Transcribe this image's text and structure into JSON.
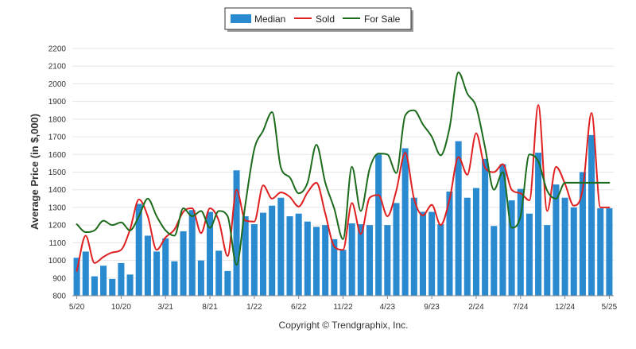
{
  "chart_data": {
    "type": "bar",
    "title": "",
    "xlabel": "",
    "ylabel": "Average Price (in $,000)",
    "ylim": [
      800,
      2200
    ],
    "yticks": [
      800,
      900,
      1000,
      1100,
      1200,
      1300,
      1400,
      1500,
      1600,
      1700,
      1800,
      1900,
      2000,
      2100,
      2200
    ],
    "grid": true,
    "legend_position": "top-center",
    "categories": [
      "5/20",
      "6/20",
      "7/20",
      "8/20",
      "9/20",
      "10/20",
      "11/20",
      "12/20",
      "1/21",
      "2/21",
      "3/21",
      "4/21",
      "5/21",
      "6/21",
      "7/21",
      "8/21",
      "9/21",
      "10/21",
      "11/21",
      "12/21",
      "1/22",
      "2/22",
      "3/22",
      "4/22",
      "5/22",
      "6/22",
      "7/22",
      "8/22",
      "9/22",
      "10/22",
      "11/22",
      "12/22",
      "1/23",
      "2/23",
      "3/23",
      "4/23",
      "5/23",
      "6/23",
      "7/23",
      "8/23",
      "9/23",
      "10/23",
      "11/23",
      "12/23",
      "1/24",
      "2/24",
      "3/24",
      "4/24",
      "5/24",
      "6/24",
      "7/24",
      "8/24",
      "9/24",
      "10/24",
      "11/24",
      "12/24",
      "1/25",
      "2/25",
      "3/25",
      "4/25",
      "5/25"
    ],
    "tick_labels": [
      {
        "index": 0,
        "label": "5/20"
      },
      {
        "index": 5,
        "label": "10/20"
      },
      {
        "index": 10,
        "label": "3/21"
      },
      {
        "index": 15,
        "label": "8/21"
      },
      {
        "index": 20,
        "label": "1/22"
      },
      {
        "index": 25,
        "label": "6/22"
      },
      {
        "index": 30,
        "label": "11/22"
      },
      {
        "index": 35,
        "label": "4/23"
      },
      {
        "index": 40,
        "label": "9/23"
      },
      {
        "index": 45,
        "label": "2/24"
      },
      {
        "index": 50,
        "label": "7/24"
      },
      {
        "index": 55,
        "label": "12/24"
      },
      {
        "index": 60,
        "label": "5/25"
      }
    ],
    "series": [
      {
        "name": "Median",
        "kind": "bar",
        "color": "#2a8ad0",
        "values": [
          1015,
          1050,
          910,
          970,
          895,
          985,
          920,
          1320,
          1140,
          1050,
          1125,
          995,
          1165,
          1285,
          1000,
          1275,
          1055,
          940,
          1510,
          1250,
          1205,
          1270,
          1310,
          1355,
          1250,
          1265,
          1220,
          1190,
          1200,
          1120,
          1060,
          1210,
          1205,
          1200,
          1600,
          1200,
          1325,
          1635,
          1355,
          1275,
          1275,
          1205,
          1390,
          1675,
          1355,
          1410,
          1575,
          1195,
          1545,
          1340,
          1405,
          1265,
          1610,
          1200,
          1430,
          1355,
          1300,
          1500,
          1710,
          1295,
          1295
        ]
      },
      {
        "name": "Sold",
        "kind": "line",
        "color": "#e02020",
        "values": [
          940,
          1140,
          985,
          1020,
          1045,
          1060,
          1175,
          1345,
          1250,
          1060,
          1130,
          1175,
          1275,
          1295,
          1155,
          1295,
          1225,
          1025,
          1400,
          1225,
          1220,
          1425,
          1350,
          1385,
          1360,
          1305,
          1385,
          1440,
          1265,
          1080,
          1060,
          1325,
          1150,
          1355,
          1370,
          1250,
          1395,
          1610,
          1350,
          1255,
          1315,
          1200,
          1345,
          1585,
          1485,
          1720,
          1525,
          1500,
          1545,
          1400,
          1380,
          1340,
          1880,
          1280,
          1530,
          1435,
          1310,
          1400,
          1835,
          1300,
          1300
        ]
      },
      {
        "name": "For Sale",
        "kind": "line",
        "color": "#1d6b1d",
        "values": [
          1205,
          1160,
          1170,
          1225,
          1200,
          1215,
          1170,
          1250,
          1350,
          1250,
          1170,
          1140,
          1295,
          1250,
          1280,
          1185,
          1280,
          1250,
          975,
          1320,
          1630,
          1735,
          1840,
          1525,
          1470,
          1380,
          1440,
          1655,
          1440,
          1295,
          1120,
          1530,
          1280,
          1520,
          1605,
          1600,
          1495,
          1820,
          1850,
          1770,
          1700,
          1595,
          1750,
          2065,
          1945,
          1870,
          1640,
          1400,
          1500,
          1185,
          1250,
          1600,
          1560,
          1395,
          1350,
          1440,
          1440,
          1440,
          1440,
          1440,
          1440
        ]
      }
    ]
  },
  "footer": {
    "copyright": "Copyright © Trendgraphix, Inc."
  }
}
